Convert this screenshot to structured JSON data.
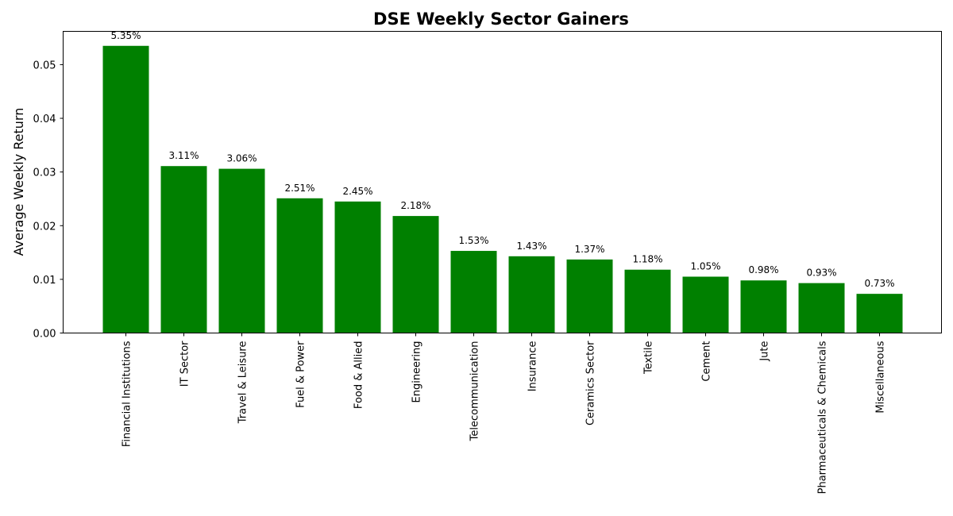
{
  "chart_data": {
    "type": "bar",
    "title": "DSE Weekly Sector Gainers",
    "xlabel": "",
    "ylabel": "Average Weekly Return",
    "ylim": [
      0,
      0.0562
    ],
    "yticks": [
      0.0,
      0.01,
      0.02,
      0.03,
      0.04,
      0.05
    ],
    "ytick_labels": [
      "0.00",
      "0.01",
      "0.02",
      "0.03",
      "0.04",
      "0.05"
    ],
    "categories": [
      "Financial Institutions",
      "IT Sector",
      "Travel & Leisure",
      "Fuel & Power",
      "Food & Allied",
      "Engineering",
      "Telecommunication",
      "Insurance",
      "Ceramics Sector",
      "Textile",
      "Cement",
      "Jute",
      "Pharmaceuticals & Chemicals",
      "Miscellaneous"
    ],
    "values": [
      0.0535,
      0.0311,
      0.0306,
      0.0251,
      0.0245,
      0.0218,
      0.0153,
      0.0143,
      0.0137,
      0.0118,
      0.0105,
      0.0098,
      0.0093,
      0.0073
    ],
    "data_labels": [
      "5.35%",
      "3.11%",
      "3.06%",
      "2.51%",
      "2.45%",
      "2.18%",
      "1.53%",
      "1.43%",
      "1.37%",
      "1.18%",
      "1.05%",
      "0.98%",
      "0.93%",
      "0.73%"
    ],
    "bar_color": "#008000",
    "grid": false,
    "legend": "none"
  }
}
